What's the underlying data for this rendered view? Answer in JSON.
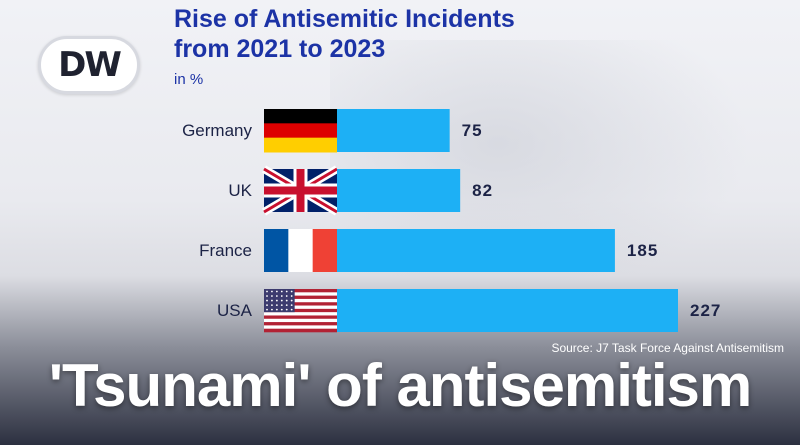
{
  "brand": {
    "logo_text": "DW"
  },
  "chart_data": {
    "type": "bar",
    "orientation": "horizontal",
    "title": "Rise of Antisemitic Incidents from 2021 to 2023",
    "title_lines": [
      "Rise of Antisemitic Incidents",
      "from 2021 to 2023"
    ],
    "unit_label": "in %",
    "categories": [
      "Germany",
      "UK",
      "France",
      "USA"
    ],
    "values": [
      75,
      82,
      185,
      227
    ],
    "data_labels": [
      "75",
      "82",
      "185",
      "227"
    ],
    "flags": [
      "flag-germany-icon",
      "flag-uk-icon",
      "flag-france-icon",
      "flag-usa-icon"
    ],
    "bar_color": "#1db0f5",
    "label_color": "#1c2346",
    "xlim": [
      0,
      227
    ],
    "grid": false,
    "legend": "none"
  },
  "source": "Source: J7 Task Force Against Antisemitism",
  "headline": "'Tsunami' of antisemitism"
}
